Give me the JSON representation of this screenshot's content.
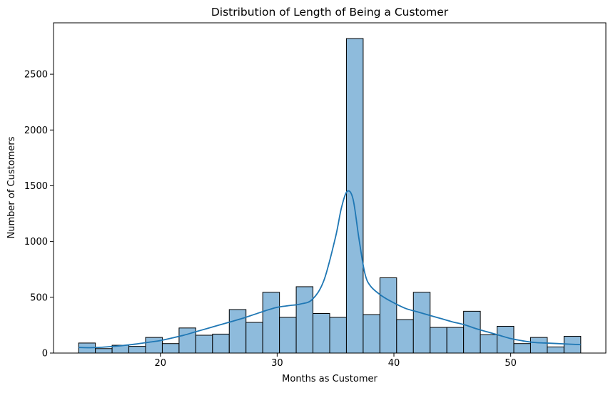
{
  "chart_data": {
    "type": "bar",
    "title": "Distribution of Length of Being a Customer",
    "xlabel": "Months as Customer",
    "ylabel": "Number of Customers",
    "xlim": [
      10.85,
      58.15
    ],
    "ylim": [
      0,
      2961
    ],
    "xticks": [
      20,
      30,
      40,
      50
    ],
    "yticks": [
      0,
      500,
      1000,
      1500,
      2000,
      2500
    ],
    "bin_start": 13,
    "bin_width": 1.4333,
    "bins": [
      {
        "x0": 13.0,
        "x1": 14.433,
        "count": 90
      },
      {
        "x0": 14.433,
        "x1": 15.867,
        "count": 40
      },
      {
        "x0": 15.867,
        "x1": 17.3,
        "count": 70
      },
      {
        "x0": 17.3,
        "x1": 18.733,
        "count": 60
      },
      {
        "x0": 18.733,
        "x1": 20.167,
        "count": 140
      },
      {
        "x0": 20.167,
        "x1": 21.6,
        "count": 85
      },
      {
        "x0": 21.6,
        "x1": 23.033,
        "count": 225
      },
      {
        "x0": 23.033,
        "x1": 24.467,
        "count": 160
      },
      {
        "x0": 24.467,
        "x1": 25.9,
        "count": 170
      },
      {
        "x0": 25.9,
        "x1": 27.333,
        "count": 390
      },
      {
        "x0": 27.333,
        "x1": 28.767,
        "count": 275
      },
      {
        "x0": 28.767,
        "x1": 30.2,
        "count": 545
      },
      {
        "x0": 30.2,
        "x1": 31.633,
        "count": 320
      },
      {
        "x0": 31.633,
        "x1": 33.067,
        "count": 595
      },
      {
        "x0": 33.067,
        "x1": 34.5,
        "count": 355
      },
      {
        "x0": 34.5,
        "x1": 35.933,
        "count": 320
      },
      {
        "x0": 35.933,
        "x1": 37.367,
        "count": 2820
      },
      {
        "x0": 37.367,
        "x1": 38.8,
        "count": 345
      },
      {
        "x0": 38.8,
        "x1": 40.233,
        "count": 675
      },
      {
        "x0": 40.233,
        "x1": 41.667,
        "count": 300
      },
      {
        "x0": 41.667,
        "x1": 43.1,
        "count": 545
      },
      {
        "x0": 43.1,
        "x1": 44.533,
        "count": 230
      },
      {
        "x0": 44.533,
        "x1": 45.967,
        "count": 230
      },
      {
        "x0": 45.967,
        "x1": 47.4,
        "count": 375
      },
      {
        "x0": 47.4,
        "x1": 48.833,
        "count": 165
      },
      {
        "x0": 48.833,
        "x1": 50.267,
        "count": 240
      },
      {
        "x0": 50.267,
        "x1": 51.7,
        "count": 85
      },
      {
        "x0": 51.7,
        "x1": 53.133,
        "count": 140
      },
      {
        "x0": 53.133,
        "x1": 54.567,
        "count": 55
      },
      {
        "x0": 54.567,
        "x1": 56.0,
        "count": 150
      }
    ],
    "kde": {
      "name": "",
      "points": [
        [
          13,
          50
        ],
        [
          14,
          48
        ],
        [
          15,
          52
        ],
        [
          16,
          60
        ],
        [
          17,
          70
        ],
        [
          18,
          82
        ],
        [
          19,
          97
        ],
        [
          20,
          112
        ],
        [
          21,
          135
        ],
        [
          22,
          160
        ],
        [
          23,
          190
        ],
        [
          24,
          220
        ],
        [
          25,
          250
        ],
        [
          26,
          280
        ],
        [
          27,
          310
        ],
        [
          28,
          345
        ],
        [
          29,
          380
        ],
        [
          30,
          410
        ],
        [
          31,
          425
        ],
        [
          32,
          440
        ],
        [
          33,
          480
        ],
        [
          34,
          650
        ],
        [
          35,
          1040
        ],
        [
          35.5,
          1300
        ],
        [
          36,
          1450
        ],
        [
          36.5,
          1380
        ],
        [
          37,
          1030
        ],
        [
          37.5,
          720
        ],
        [
          38,
          600
        ],
        [
          39,
          510
        ],
        [
          40,
          450
        ],
        [
          41,
          400
        ],
        [
          42,
          370
        ],
        [
          43,
          340
        ],
        [
          44,
          310
        ],
        [
          45,
          280
        ],
        [
          46,
          255
        ],
        [
          47,
          220
        ],
        [
          48,
          190
        ],
        [
          49,
          160
        ],
        [
          50,
          130
        ],
        [
          51,
          110
        ],
        [
          52,
          95
        ],
        [
          53,
          90
        ],
        [
          54,
          85
        ],
        [
          55,
          80
        ],
        [
          56,
          75
        ]
      ]
    },
    "bar_fill": "#8ebbdc",
    "bar_edge": "#000000",
    "kde_color": "#1f77b4",
    "grid": false,
    "legend": false
  }
}
